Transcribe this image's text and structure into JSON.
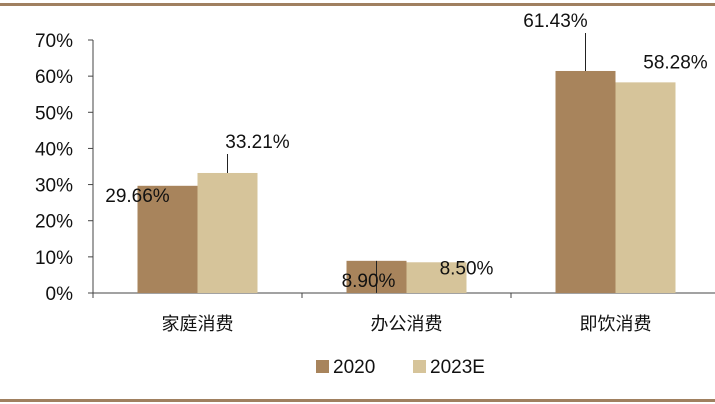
{
  "colors": {
    "s2020": "#a8845c",
    "s2023": "#d6c49a",
    "rule": "#a08060",
    "axis": "#444444"
  },
  "chart_data": {
    "type": "bar",
    "categories": [
      "家庭消费",
      "办公消费",
      "即饮消费"
    ],
    "series": [
      {
        "name": "2020",
        "values": [
          29.66,
          8.9,
          61.43
        ],
        "labels": [
          "29.66%",
          "8.90%",
          "61.43%"
        ]
      },
      {
        "name": "2023E",
        "values": [
          33.21,
          8.5,
          58.28
        ],
        "labels": [
          "33.21%",
          "8.50%",
          "58.28%"
        ]
      }
    ],
    "y_ticks": [
      "0%",
      "10%",
      "20%",
      "30%",
      "40%",
      "50%",
      "60%",
      "70%"
    ],
    "ylim": [
      0,
      70
    ],
    "legend_position": "bottom",
    "grid": false,
    "title": "",
    "xlabel": "",
    "ylabel": ""
  }
}
